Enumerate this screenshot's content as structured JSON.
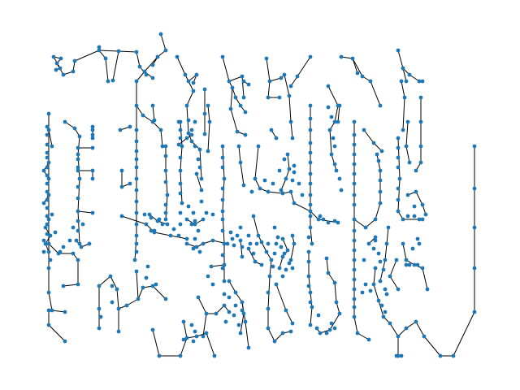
{
  "figure": {
    "kind": "network-graph",
    "layout": "vertical-trees",
    "background": "#ffffff",
    "node_color": "#1f77b4",
    "edge_color": "#000000",
    "axes_visible": false,
    "title": ""
  }
}
